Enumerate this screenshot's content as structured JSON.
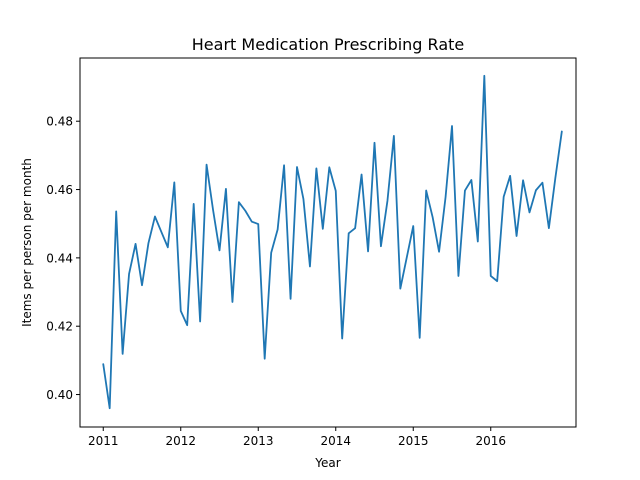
{
  "chart_data": {
    "type": "line",
    "title": "Heart Medication Prescribing Rate",
    "xlabel": "Year",
    "ylabel": "Items per person per month",
    "xlim": [
      2010.7,
      2017.1
    ],
    "ylim": [
      0.3905,
      0.4985
    ],
    "xticks": [
      2011,
      2012,
      2013,
      2014,
      2015,
      2016
    ],
    "xtick_labels": [
      "2011",
      "2012",
      "2013",
      "2014",
      "2015",
      "2016"
    ],
    "yticks": [
      0.4,
      0.42,
      0.44,
      0.46,
      0.48
    ],
    "ytick_labels": [
      "0.40",
      "0.42",
      "0.44",
      "0.46",
      "0.48"
    ],
    "grid": false,
    "legend": "none",
    "series": [
      {
        "color": "#1f77b4",
        "x": [
          2011.0,
          2011.083,
          2011.167,
          2011.25,
          2011.333,
          2011.417,
          2011.5,
          2011.583,
          2011.667,
          2011.75,
          2011.833,
          2011.917,
          2012.0,
          2012.083,
          2012.167,
          2012.25,
          2012.333,
          2012.417,
          2012.5,
          2012.583,
          2012.667,
          2012.75,
          2012.833,
          2012.917,
          2013.0,
          2013.083,
          2013.167,
          2013.25,
          2013.333,
          2013.417,
          2013.5,
          2013.583,
          2013.667,
          2013.75,
          2013.833,
          2013.917,
          2014.0,
          2014.083,
          2014.167,
          2014.25,
          2014.333,
          2014.417,
          2014.5,
          2014.583,
          2014.667,
          2014.75,
          2014.833,
          2014.917,
          2015.0,
          2015.083,
          2015.167,
          2015.25,
          2015.333,
          2015.417,
          2015.5,
          2015.583,
          2015.667,
          2015.75,
          2015.833,
          2015.917,
          2016.0,
          2016.083,
          2016.167,
          2016.25,
          2016.333,
          2016.417,
          2016.5,
          2016.583,
          2016.667,
          2016.75,
          2016.833,
          2016.917
        ],
        "values": [
          0.4089,
          0.396,
          0.4536,
          0.4119,
          0.4353,
          0.4441,
          0.432,
          0.4443,
          0.4521,
          0.4476,
          0.4431,
          0.4621,
          0.4245,
          0.4203,
          0.4558,
          0.4214,
          0.4673,
          0.454,
          0.4422,
          0.4602,
          0.4271,
          0.4563,
          0.4538,
          0.4506,
          0.4499,
          0.4105,
          0.4415,
          0.4483,
          0.4671,
          0.428,
          0.4666,
          0.4572,
          0.4375,
          0.4662,
          0.4485,
          0.4665,
          0.4596,
          0.4164,
          0.4472,
          0.4487,
          0.4644,
          0.4419,
          0.4737,
          0.4434,
          0.4567,
          0.4757,
          0.431,
          0.4402,
          0.4493,
          0.4166,
          0.4597,
          0.4519,
          0.4418,
          0.4578,
          0.4786,
          0.4347,
          0.4597,
          0.4628,
          0.4448,
          0.4933,
          0.4347,
          0.4332,
          0.4579,
          0.464,
          0.4464,
          0.4627,
          0.4533,
          0.4598,
          0.462,
          0.4487,
          0.4633,
          0.477
        ]
      }
    ]
  }
}
